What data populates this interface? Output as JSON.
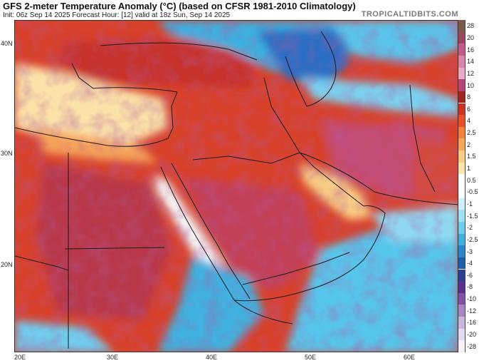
{
  "header": {
    "title": "GFS 2-meter Temperature Anomaly (°C) (based on CFSR 1981-2010 Climatology)",
    "subtitle": "Init: 06z Sep 14 2025   Forecast Hour: [12]   valid at 18z Sun, Sep 14 2025",
    "brand": "TROPICALTIDBITS.COM"
  },
  "map": {
    "lat_labels": [
      "40N",
      "30N",
      "20N"
    ],
    "lon_labels": [
      "20E",
      "30E",
      "40E",
      "50E",
      "60E"
    ],
    "lon_range": [
      20,
      65
    ],
    "lat_range": [
      12,
      43
    ]
  },
  "colorbar": {
    "levels": [
      {
        "label": "28",
        "color": "#7a5a48"
      },
      {
        "label": "20",
        "color": "#9c4660"
      },
      {
        "label": "16",
        "color": "#c25a8a"
      },
      {
        "label": "14",
        "color": "#d985ad"
      },
      {
        "label": "12",
        "color": "#ecaacb"
      },
      {
        "label": "10",
        "color": "#b4437a"
      },
      {
        "label": "8",
        "color": "#a3231f"
      },
      {
        "label": "6",
        "color": "#cf3222"
      },
      {
        "label": "4",
        "color": "#e8502a"
      },
      {
        "label": "2.5",
        "color": "#f1813b"
      },
      {
        "label": "2",
        "color": "#f5a65a"
      },
      {
        "label": "1.5",
        "color": "#f8cc85"
      },
      {
        "label": "1",
        "color": "#fbe6b0"
      },
      {
        "label": "0.5",
        "color": "#ffffff"
      },
      {
        "label": "-0.5",
        "color": "#ffffff"
      },
      {
        "label": "-1",
        "color": "#cdeefa"
      },
      {
        "label": "-1.5",
        "color": "#9fe0f5"
      },
      {
        "label": "-2",
        "color": "#6fcdee"
      },
      {
        "label": "-2.5",
        "color": "#3fb1e0"
      },
      {
        "label": "-3",
        "color": "#2a86cb"
      },
      {
        "label": "-4",
        "color": "#1c5fae"
      },
      {
        "label": "-6",
        "color": "#2d3c95"
      },
      {
        "label": "-8",
        "color": "#5b2f8e"
      },
      {
        "label": "-10",
        "color": "#8252a6"
      },
      {
        "label": "-12",
        "color": "#a887c4"
      },
      {
        "label": "-16",
        "color": "#cbb6dc"
      },
      {
        "label": "-20",
        "color": "#e5dbef"
      },
      {
        "label": "-28",
        "color": "#f6f1fa"
      }
    ]
  }
}
